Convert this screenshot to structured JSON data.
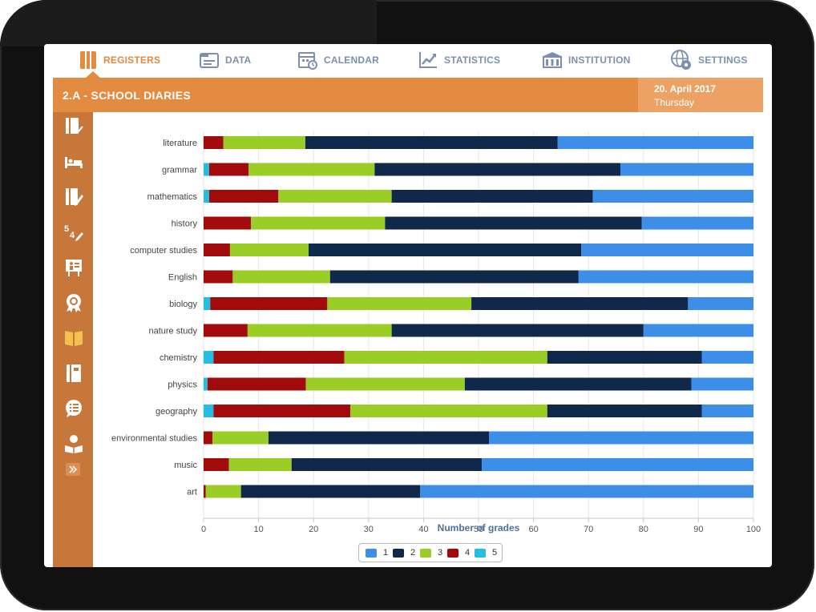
{
  "colors": {
    "accent": "#e38b40",
    "accent_dark": "#c7773a",
    "date_bg": "#eba264",
    "nav_text": "#7d8fb0",
    "grade_1": "#3c8ee6",
    "grade_2": "#10294a",
    "grade_3": "#9acd26",
    "grade_4": "#a10b0b",
    "grade_5": "#25bde2"
  },
  "nav": {
    "items": [
      {
        "label": "REGISTERS",
        "icon": "registers-icon",
        "active": true
      },
      {
        "label": "DATA",
        "icon": "data-icon",
        "active": false
      },
      {
        "label": "CALENDAR",
        "icon": "calendar-icon",
        "active": false
      },
      {
        "label": "STATISTICS",
        "icon": "statistics-icon",
        "active": false
      },
      {
        "label": "INSTITUTION",
        "icon": "institution-icon",
        "active": false
      },
      {
        "label": "SETTINGS",
        "icon": "settings-icon",
        "active": false
      }
    ]
  },
  "header": {
    "title": "2.A - SCHOOL DIARIES",
    "date": "20. April 2017",
    "weekday": "Thursday"
  },
  "sidebar": {
    "icons": [
      "diary-chart-icon",
      "bed-icon",
      "diary-edit-icon",
      "grades-edit-icon",
      "presentation-icon",
      "award-icon",
      "open-book-icon",
      "notebook-icon",
      "chat-bubble-icon",
      "student-reading-icon"
    ],
    "expand_icon": "double-chevron-right-icon"
  },
  "chart_data": {
    "type": "bar",
    "orientation": "horizontal",
    "stacked": true,
    "categories": [
      "literature",
      "grammar",
      "mathematics",
      "history",
      "computer studies",
      "English",
      "biology",
      "nature study",
      "chemistry",
      "physics",
      "geography",
      "environmental studies",
      "music",
      "art"
    ],
    "series": [
      {
        "name": "5",
        "values": [
          0,
          1,
          1,
          0,
          0,
          0,
          1.2,
          0,
          1.8,
          0.7,
          1.8,
          0,
          0,
          0
        ]
      },
      {
        "name": "4",
        "values": [
          3.6,
          7.2,
          12.6,
          8.6,
          4.8,
          5.3,
          21.3,
          8,
          23.8,
          17.9,
          24.9,
          1.6,
          4.6,
          0.4
        ]
      },
      {
        "name": "3",
        "values": [
          14.9,
          22.9,
          20.6,
          24.4,
          14.3,
          17.7,
          26.2,
          26.2,
          36.9,
          28.9,
          35.8,
          10.2,
          11.4,
          6.4
        ]
      },
      {
        "name": "2",
        "values": [
          45.9,
          44.7,
          36.6,
          46.7,
          49.6,
          45.2,
          39.4,
          45.8,
          28.1,
          41.2,
          28.1,
          40.1,
          34.6,
          32.6
        ]
      },
      {
        "name": "1",
        "values": [
          35.6,
          24.2,
          29.2,
          20.3,
          31.3,
          31.8,
          11.9,
          20,
          9.4,
          11.3,
          9.4,
          48.1,
          49.4,
          60.6
        ]
      }
    ],
    "xlim": [
      0,
      100
    ],
    "xticks": [
      "0",
      "10",
      "20",
      "30",
      "40",
      "50",
      "60",
      "70",
      "80",
      "90",
      "100"
    ],
    "xlabel": "Number of grades",
    "ylabel": "",
    "legend": {
      "placement": "bottom-center",
      "items": [
        "1",
        "2",
        "3",
        "4",
        "5"
      ]
    }
  }
}
